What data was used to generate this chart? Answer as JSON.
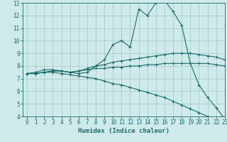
{
  "xlabel": "Humidex (Indice chaleur)",
  "bg_color": "#ceeaea",
  "grid_color": "#aacccc",
  "line_color": "#1a6b6b",
  "xlim": [
    -0.5,
    23
  ],
  "ylim": [
    4,
    13
  ],
  "xticks": [
    0,
    1,
    2,
    3,
    4,
    5,
    6,
    7,
    8,
    9,
    10,
    11,
    12,
    13,
    14,
    15,
    16,
    17,
    18,
    19,
    20,
    21,
    22,
    23
  ],
  "yticks": [
    4,
    5,
    6,
    7,
    8,
    9,
    10,
    11,
    12,
    13
  ],
  "series1_x": [
    0,
    1,
    2,
    3,
    4,
    5,
    6,
    7,
    8,
    9,
    10,
    11,
    12,
    13,
    14,
    15,
    16,
    17,
    18,
    19,
    20,
    21,
    22,
    23
  ],
  "series1_y": [
    7.4,
    7.5,
    7.7,
    7.7,
    7.6,
    7.5,
    7.4,
    7.5,
    8.0,
    8.5,
    9.7,
    10.0,
    9.5,
    12.5,
    12.0,
    13.0,
    13.2,
    12.3,
    11.2,
    8.2,
    6.5,
    5.5,
    4.7,
    3.8
  ],
  "series2_x": [
    0,
    1,
    2,
    3,
    4,
    5,
    6,
    7,
    8,
    9,
    10,
    11,
    12,
    13,
    14,
    15,
    16,
    17,
    18,
    19,
    20,
    21,
    22,
    23
  ],
  "series2_y": [
    7.4,
    7.4,
    7.5,
    7.6,
    7.6,
    7.5,
    7.6,
    7.8,
    8.0,
    8.1,
    8.3,
    8.4,
    8.5,
    8.6,
    8.7,
    8.8,
    8.9,
    9.0,
    9.0,
    9.0,
    8.9,
    8.8,
    8.7,
    8.5
  ],
  "series3_x": [
    0,
    1,
    2,
    3,
    4,
    5,
    6,
    7,
    8,
    9,
    10,
    11,
    12,
    13,
    14,
    15,
    16,
    17,
    18,
    19,
    20,
    21,
    22,
    23
  ],
  "series3_y": [
    7.4,
    7.4,
    7.5,
    7.6,
    7.6,
    7.5,
    7.6,
    7.7,
    7.8,
    7.8,
    7.9,
    7.9,
    8.0,
    8.0,
    8.1,
    8.1,
    8.2,
    8.2,
    8.2,
    8.2,
    8.2,
    8.2,
    8.1,
    8.0
  ],
  "series4_x": [
    0,
    1,
    2,
    3,
    4,
    5,
    6,
    7,
    8,
    9,
    10,
    11,
    12,
    13,
    14,
    15,
    16,
    17,
    18,
    19,
    20,
    21,
    22,
    23
  ],
  "series4_y": [
    7.4,
    7.4,
    7.5,
    7.5,
    7.4,
    7.3,
    7.2,
    7.1,
    7.0,
    6.8,
    6.6,
    6.5,
    6.3,
    6.1,
    5.9,
    5.7,
    5.5,
    5.2,
    4.9,
    4.6,
    4.3,
    4.0,
    3.8,
    3.6
  ],
  "tick_fontsize": 5.5,
  "xlabel_fontsize": 6.5,
  "marker_size": 3,
  "linewidth": 0.8
}
